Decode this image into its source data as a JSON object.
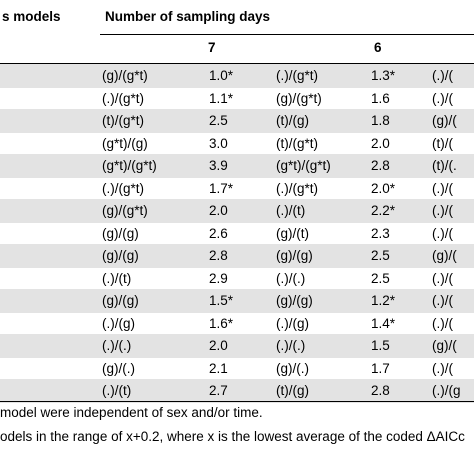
{
  "header": {
    "models_label": "s models",
    "sampling_days_label": "Number of sampling days",
    "day_7": "7",
    "day_6": "6"
  },
  "rows": [
    {
      "m7": "(g)/(g*t)",
      "v7": "1.0*",
      "m6": "(.)/(g*t)",
      "v6": "1.3*",
      "m5": "(.)/("
    },
    {
      "m7": "(.)/(g*t)",
      "v7": "1.1*",
      "m6": "(g)/(g*t)",
      "v6": "1.6",
      "m5": "(.)/("
    },
    {
      "m7": "(t)/(g*t)",
      "v7": "2.5",
      "m6": "(t)/(g)",
      "v6": "1.8",
      "m5": "(g)/("
    },
    {
      "m7": "(g*t)/(g)",
      "v7": "3.0",
      "m6": "(t)/(g*t)",
      "v6": "2.0",
      "m5": "(t)/("
    },
    {
      "m7": "(g*t)/(g*t)",
      "v7": "3.9",
      "m6": "(g*t)/(g*t)",
      "v6": "2.8",
      "m5": "(t)/(."
    },
    {
      "m7": "(.)/(g*t)",
      "v7": "1.7*",
      "m6": "(.)/(g*t)",
      "v6": "2.0*",
      "m5": "(.)/("
    },
    {
      "m7": "(g)/(g*t)",
      "v7": "2.0",
      "m6": "(.)/(t)",
      "v6": "2.2*",
      "m5": "(.)/("
    },
    {
      "m7": "(g)/(g)",
      "v7": "2.6",
      "m6": "(g)/(t)",
      "v6": "2.3",
      "m5": "(.)/("
    },
    {
      "m7": "(g)/(g)",
      "v7": "2.8",
      "m6": "(g)/(g)",
      "v6": "2.5",
      "m5": "(g)/("
    },
    {
      "m7": "(.)/(t)",
      "v7": "2.9",
      "m6": "(.)/(.)",
      "v6": "2.5",
      "m5": "(.)/("
    },
    {
      "m7": "(g)/(g)",
      "v7": "1.5*",
      "m6": "(g)/(g)",
      "v6": "1.2*",
      "m5": "(.)/("
    },
    {
      "m7": "(.)/(g)",
      "v7": "1.6*",
      "m6": "(.)/(g)",
      "v6": "1.4*",
      "m5": "(.)/("
    },
    {
      "m7": "(.)/(.)",
      "v7": "2.0",
      "m6": "(.)/(.)",
      "v6": "1.5",
      "m5": "(g)/("
    },
    {
      "m7": "(g)/(.)",
      "v7": "2.1",
      "m6": "(g)/(.)",
      "v6": "1.7",
      "m5": "(.)/("
    },
    {
      "m7": "(.)/(t)",
      "v7": "2.7",
      "m6": "(t)/(g)",
      "v6": "2.8",
      "m5": "(.)/(g"
    }
  ],
  "footnotes": [
    "model were independent of sex and/or time.",
    "odels in the range of x+0.2, where x is the lowest average of the coded ΔAICc"
  ]
}
